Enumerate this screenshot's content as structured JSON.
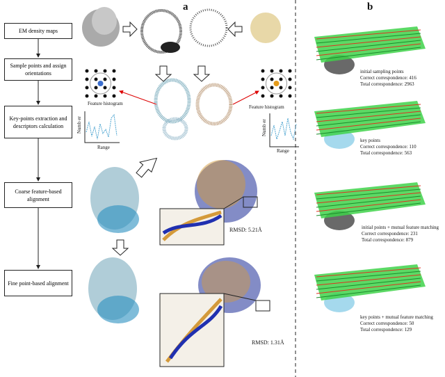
{
  "panel_a": {
    "label": "a",
    "steps": [
      "EM density maps",
      "Sample points and assign orientations",
      "Key-points extraction and descriptors calculation",
      "Coarse feature-based alignment",
      "Fine point-based alignment"
    ],
    "histograms": [
      {
        "title": "Feature histogram",
        "y_label": "Numb er",
        "x_label": "Range"
      },
      {
        "title": "Feature histogram",
        "y_label": "Numb er",
        "x_label": "Range"
      }
    ],
    "rmsd": [
      "RMSD: 5.21Å",
      "RMSD: 1.31Å"
    ]
  },
  "panel_b": {
    "label": "b",
    "results": [
      {
        "lines": [
          "initial sampling points",
          "Correct correspondence: 416",
          "Total correspondence: 2963"
        ]
      },
      {
        "lines": [
          "key points",
          "Correct correspondence: 110",
          "Total correspondence: 563"
        ]
      },
      {
        "lines": [
          "initial points + mutual feature matching",
          "Correct correspondence: 231",
          "Total correspondence: 879"
        ]
      },
      {
        "lines": [
          "key points + mutual feature matching",
          "Correct correspondence: 50",
          "Total correspondence: 129"
        ]
      }
    ]
  }
}
